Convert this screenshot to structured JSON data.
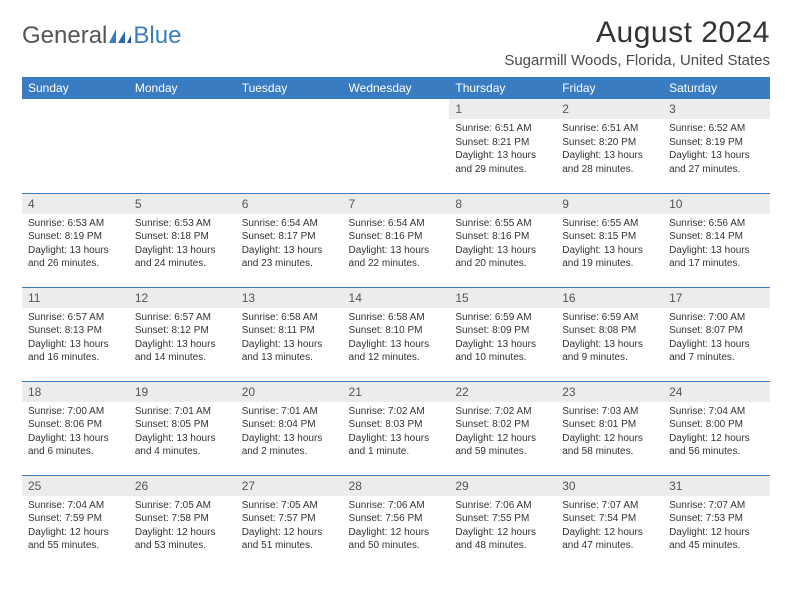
{
  "brand": {
    "part1": "General",
    "part2": "Blue"
  },
  "title": "August 2024",
  "subtitle": "Sugarmill Woods, Florida, United States",
  "colors": {
    "header_bg": "#3a7cc2",
    "header_text": "#ffffff",
    "daynum_bg": "#ececec",
    "cell_border": "#3a7cc2",
    "page_bg": "#ffffff",
    "text": "#333333"
  },
  "typography": {
    "title_fontsize": 30,
    "subtitle_fontsize": 15,
    "dayhead_fontsize": 12,
    "daynum_fontsize": 12,
    "body_fontsize": 10
  },
  "day_headers": [
    "Sunday",
    "Monday",
    "Tuesday",
    "Wednesday",
    "Thursday",
    "Friday",
    "Saturday"
  ],
  "weeks": [
    [
      null,
      null,
      null,
      null,
      {
        "num": "1",
        "sunrise": "Sunrise: 6:51 AM",
        "sunset": "Sunset: 8:21 PM",
        "daylight": "Daylight: 13 hours and 29 minutes."
      },
      {
        "num": "2",
        "sunrise": "Sunrise: 6:51 AM",
        "sunset": "Sunset: 8:20 PM",
        "daylight": "Daylight: 13 hours and 28 minutes."
      },
      {
        "num": "3",
        "sunrise": "Sunrise: 6:52 AM",
        "sunset": "Sunset: 8:19 PM",
        "daylight": "Daylight: 13 hours and 27 minutes."
      }
    ],
    [
      {
        "num": "4",
        "sunrise": "Sunrise: 6:53 AM",
        "sunset": "Sunset: 8:19 PM",
        "daylight": "Daylight: 13 hours and 26 minutes."
      },
      {
        "num": "5",
        "sunrise": "Sunrise: 6:53 AM",
        "sunset": "Sunset: 8:18 PM",
        "daylight": "Daylight: 13 hours and 24 minutes."
      },
      {
        "num": "6",
        "sunrise": "Sunrise: 6:54 AM",
        "sunset": "Sunset: 8:17 PM",
        "daylight": "Daylight: 13 hours and 23 minutes."
      },
      {
        "num": "7",
        "sunrise": "Sunrise: 6:54 AM",
        "sunset": "Sunset: 8:16 PM",
        "daylight": "Daylight: 13 hours and 22 minutes."
      },
      {
        "num": "8",
        "sunrise": "Sunrise: 6:55 AM",
        "sunset": "Sunset: 8:16 PM",
        "daylight": "Daylight: 13 hours and 20 minutes."
      },
      {
        "num": "9",
        "sunrise": "Sunrise: 6:55 AM",
        "sunset": "Sunset: 8:15 PM",
        "daylight": "Daylight: 13 hours and 19 minutes."
      },
      {
        "num": "10",
        "sunrise": "Sunrise: 6:56 AM",
        "sunset": "Sunset: 8:14 PM",
        "daylight": "Daylight: 13 hours and 17 minutes."
      }
    ],
    [
      {
        "num": "11",
        "sunrise": "Sunrise: 6:57 AM",
        "sunset": "Sunset: 8:13 PM",
        "daylight": "Daylight: 13 hours and 16 minutes."
      },
      {
        "num": "12",
        "sunrise": "Sunrise: 6:57 AM",
        "sunset": "Sunset: 8:12 PM",
        "daylight": "Daylight: 13 hours and 14 minutes."
      },
      {
        "num": "13",
        "sunrise": "Sunrise: 6:58 AM",
        "sunset": "Sunset: 8:11 PM",
        "daylight": "Daylight: 13 hours and 13 minutes."
      },
      {
        "num": "14",
        "sunrise": "Sunrise: 6:58 AM",
        "sunset": "Sunset: 8:10 PM",
        "daylight": "Daylight: 13 hours and 12 minutes."
      },
      {
        "num": "15",
        "sunrise": "Sunrise: 6:59 AM",
        "sunset": "Sunset: 8:09 PM",
        "daylight": "Daylight: 13 hours and 10 minutes."
      },
      {
        "num": "16",
        "sunrise": "Sunrise: 6:59 AM",
        "sunset": "Sunset: 8:08 PM",
        "daylight": "Daylight: 13 hours and 9 minutes."
      },
      {
        "num": "17",
        "sunrise": "Sunrise: 7:00 AM",
        "sunset": "Sunset: 8:07 PM",
        "daylight": "Daylight: 13 hours and 7 minutes."
      }
    ],
    [
      {
        "num": "18",
        "sunrise": "Sunrise: 7:00 AM",
        "sunset": "Sunset: 8:06 PM",
        "daylight": "Daylight: 13 hours and 6 minutes."
      },
      {
        "num": "19",
        "sunrise": "Sunrise: 7:01 AM",
        "sunset": "Sunset: 8:05 PM",
        "daylight": "Daylight: 13 hours and 4 minutes."
      },
      {
        "num": "20",
        "sunrise": "Sunrise: 7:01 AM",
        "sunset": "Sunset: 8:04 PM",
        "daylight": "Daylight: 13 hours and 2 minutes."
      },
      {
        "num": "21",
        "sunrise": "Sunrise: 7:02 AM",
        "sunset": "Sunset: 8:03 PM",
        "daylight": "Daylight: 13 hours and 1 minute."
      },
      {
        "num": "22",
        "sunrise": "Sunrise: 7:02 AM",
        "sunset": "Sunset: 8:02 PM",
        "daylight": "Daylight: 12 hours and 59 minutes."
      },
      {
        "num": "23",
        "sunrise": "Sunrise: 7:03 AM",
        "sunset": "Sunset: 8:01 PM",
        "daylight": "Daylight: 12 hours and 58 minutes."
      },
      {
        "num": "24",
        "sunrise": "Sunrise: 7:04 AM",
        "sunset": "Sunset: 8:00 PM",
        "daylight": "Daylight: 12 hours and 56 minutes."
      }
    ],
    [
      {
        "num": "25",
        "sunrise": "Sunrise: 7:04 AM",
        "sunset": "Sunset: 7:59 PM",
        "daylight": "Daylight: 12 hours and 55 minutes."
      },
      {
        "num": "26",
        "sunrise": "Sunrise: 7:05 AM",
        "sunset": "Sunset: 7:58 PM",
        "daylight": "Daylight: 12 hours and 53 minutes."
      },
      {
        "num": "27",
        "sunrise": "Sunrise: 7:05 AM",
        "sunset": "Sunset: 7:57 PM",
        "daylight": "Daylight: 12 hours and 51 minutes."
      },
      {
        "num": "28",
        "sunrise": "Sunrise: 7:06 AM",
        "sunset": "Sunset: 7:56 PM",
        "daylight": "Daylight: 12 hours and 50 minutes."
      },
      {
        "num": "29",
        "sunrise": "Sunrise: 7:06 AM",
        "sunset": "Sunset: 7:55 PM",
        "daylight": "Daylight: 12 hours and 48 minutes."
      },
      {
        "num": "30",
        "sunrise": "Sunrise: 7:07 AM",
        "sunset": "Sunset: 7:54 PM",
        "daylight": "Daylight: 12 hours and 47 minutes."
      },
      {
        "num": "31",
        "sunrise": "Sunrise: 7:07 AM",
        "sunset": "Sunset: 7:53 PM",
        "daylight": "Daylight: 12 hours and 45 minutes."
      }
    ]
  ]
}
